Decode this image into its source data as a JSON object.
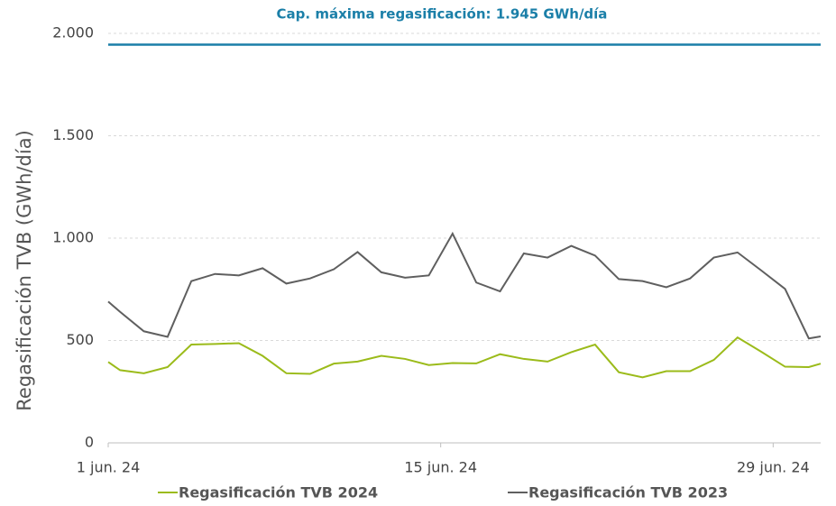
{
  "chart_data": {
    "type": "line",
    "annotation": "Cap. máxima regasificación: 1.945 GWh/día",
    "reference_line": {
      "value": 1945,
      "color": "#1b7fa8"
    },
    "y_label": "Regasificación TVB (GWh/día)",
    "x": [
      0,
      0.5,
      1.5,
      2.5,
      3.5,
      4.5,
      5.5,
      6.5,
      7.5,
      8.5,
      9.5,
      10.5,
      11.5,
      12.5,
      13.5,
      14.5,
      15.5,
      16.5,
      17.5,
      18.5,
      19.5,
      20.5,
      21.5,
      22.5,
      23.5,
      24.5,
      25.5,
      26.5,
      27.5,
      28.5,
      29.5,
      30
    ],
    "xlim": [
      0,
      30
    ],
    "xticks": [
      {
        "value": 0,
        "label": "1 jun. 24"
      },
      {
        "value": 14,
        "label": "15 jun. 24"
      },
      {
        "value": 28,
        "label": "29 jun. 24"
      }
    ],
    "ylim": [
      0,
      2000
    ],
    "yticks": [
      0,
      500,
      {
        "value": 1000,
        "label": "1.000"
      },
      {
        "value": 1500,
        "label": "1.500"
      },
      {
        "value": 2000,
        "label": "2.000"
      }
    ],
    "grid": true,
    "legend": "bottom",
    "series": [
      {
        "name": "Regasificación TVB 2024",
        "color": "#9bbb1a",
        "values": [
          395,
          355,
          340,
          370,
          480,
          483,
          487,
          425,
          340,
          337,
          387,
          397,
          425,
          410,
          380,
          390,
          388,
          433,
          410,
          397,
          443,
          480,
          345,
          320,
          350,
          350,
          405,
          515,
          445,
          372,
          370,
          387
        ]
      },
      {
        "name": "Regasificación TVB 2023",
        "color": "#5f5f5f",
        "values": [
          690,
          640,
          545,
          518,
          790,
          825,
          818,
          853,
          778,
          803,
          848,
          932,
          833,
          807,
          818,
          1022,
          783,
          740,
          925,
          905,
          962,
          915,
          800,
          790,
          760,
          803,
          905,
          930,
          842,
          752,
          510,
          520
        ]
      }
    ]
  }
}
